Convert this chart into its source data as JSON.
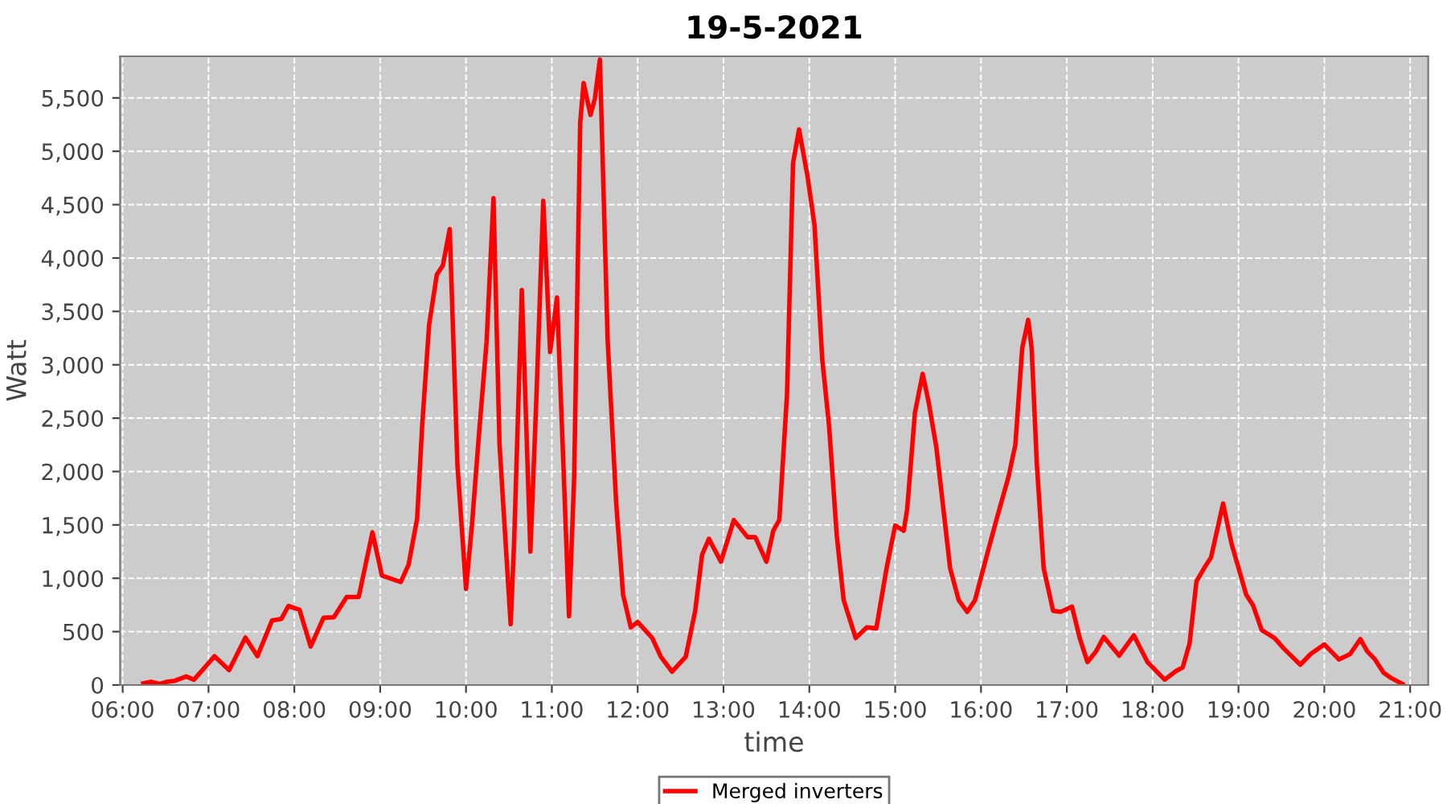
{
  "chart_data": {
    "type": "line",
    "title": "19-5-2021",
    "xlabel": "time",
    "ylabel": "Watt",
    "series": [
      {
        "name": "Merged inverters",
        "color": "#ff0000",
        "x": [
          6.24,
          6.33,
          6.43,
          6.52,
          6.61,
          6.74,
          6.83,
          6.93,
          7.07,
          7.24,
          7.43,
          7.57,
          7.74,
          7.85,
          7.93,
          8.06,
          8.19,
          8.34,
          8.46,
          8.61,
          8.75,
          8.91,
          9.02,
          9.11,
          9.24,
          9.33,
          9.43,
          9.49,
          9.57,
          9.66,
          9.73,
          9.81,
          9.9,
          10.0,
          10.07,
          10.15,
          10.24,
          10.32,
          10.39,
          10.52,
          10.56,
          10.65,
          10.75,
          10.82,
          10.9,
          10.98,
          11.06,
          11.14,
          11.2,
          11.26,
          11.33,
          11.37,
          11.45,
          11.5,
          11.56,
          11.65,
          11.75,
          11.83,
          11.92,
          12.0,
          12.17,
          12.27,
          12.4,
          12.56,
          12.67,
          12.75,
          12.83,
          12.97,
          13.12,
          13.28,
          13.37,
          13.5,
          13.58,
          13.65,
          13.74,
          13.81,
          13.88,
          13.98,
          14.06,
          14.15,
          14.23,
          14.32,
          14.4,
          14.54,
          14.67,
          14.78,
          14.9,
          15.0,
          15.1,
          15.14,
          15.23,
          15.32,
          15.39,
          15.48,
          15.64,
          15.74,
          15.84,
          15.93,
          16.07,
          16.17,
          16.32,
          16.4,
          16.48,
          16.55,
          16.59,
          16.65,
          16.73,
          16.84,
          16.93,
          17.06,
          17.15,
          17.24,
          17.34,
          17.43,
          17.61,
          17.78,
          17.94,
          18.14,
          18.27,
          18.35,
          18.43,
          18.51,
          18.6,
          18.68,
          18.82,
          18.92,
          19.09,
          19.17,
          19.27,
          19.42,
          19.53,
          19.72,
          19.84,
          20.0,
          20.17,
          20.3,
          20.42,
          20.5,
          20.59,
          20.69,
          20.78,
          20.91
        ],
        "values": [
          15,
          30,
          10,
          30,
          40,
          80,
          50,
          140,
          270,
          140,
          445,
          270,
          605,
          620,
          740,
          705,
          360,
          630,
          635,
          825,
          825,
          1430,
          1025,
          1000,
          965,
          1125,
          1555,
          2440,
          3375,
          3845,
          3930,
          4270,
          2060,
          900,
          1505,
          2340,
          3220,
          4560,
          2260,
          570,
          1330,
          3700,
          1250,
          2690,
          4535,
          3120,
          3630,
          1950,
          645,
          1950,
          5265,
          5640,
          5340,
          5490,
          5860,
          3230,
          1700,
          845,
          540,
          590,
          440,
          265,
          125,
          265,
          695,
          1220,
          1370,
          1155,
          1545,
          1385,
          1385,
          1155,
          1445,
          1545,
          2725,
          4890,
          5205,
          4760,
          4310,
          3055,
          2425,
          1395,
          795,
          440,
          540,
          530,
          1095,
          1495,
          1445,
          1650,
          2550,
          2915,
          2650,
          2225,
          1095,
          795,
          685,
          795,
          1220,
          1520,
          1950,
          2250,
          3155,
          3420,
          3155,
          2075,
          1095,
          695,
          685,
          735,
          440,
          215,
          315,
          450,
          275,
          465,
          215,
          50,
          130,
          165,
          390,
          970,
          1095,
          1195,
          1700,
          1320,
          845,
          745,
          515,
          440,
          340,
          190,
          290,
          380,
          240,
          290,
          430,
          315,
          240,
          115,
          65,
          10
        ]
      }
    ],
    "xlim": [
      5.97,
      21.21
    ],
    "ylim": [
      0,
      5890
    ],
    "xticks": [
      {
        "value": 6,
        "label": "06:00"
      },
      {
        "value": 7,
        "label": "07:00"
      },
      {
        "value": 8,
        "label": "08:00"
      },
      {
        "value": 9,
        "label": "09:00"
      },
      {
        "value": 10,
        "label": "10:00"
      },
      {
        "value": 11,
        "label": "11:00"
      },
      {
        "value": 12,
        "label": "12:00"
      },
      {
        "value": 13,
        "label": "13:00"
      },
      {
        "value": 14,
        "label": "14:00"
      },
      {
        "value": 15,
        "label": "15:00"
      },
      {
        "value": 16,
        "label": "16:00"
      },
      {
        "value": 17,
        "label": "17:00"
      },
      {
        "value": 18,
        "label": "18:00"
      },
      {
        "value": 19,
        "label": "19:00"
      },
      {
        "value": 20,
        "label": "20:00"
      },
      {
        "value": 21,
        "label": "21:00"
      }
    ],
    "yticks": [
      0,
      {
        "value": 500,
        "label": "500"
      },
      {
        "value": 1000,
        "label": "1,000"
      },
      {
        "value": 1500,
        "label": "1,500"
      },
      {
        "value": 2000,
        "label": "2,000"
      },
      {
        "value": 2500,
        "label": "2,500"
      },
      {
        "value": 3000,
        "label": "3,000"
      },
      {
        "value": 3500,
        "label": "3,500"
      },
      {
        "value": 4000,
        "label": "4,000"
      },
      {
        "value": 4500,
        "label": "4,500"
      },
      {
        "value": 5000,
        "label": "5,000"
      },
      {
        "value": 5500,
        "label": "5,500"
      }
    ],
    "grid": true,
    "legend": "bottom",
    "line_style": "solid",
    "marker": "none"
  }
}
